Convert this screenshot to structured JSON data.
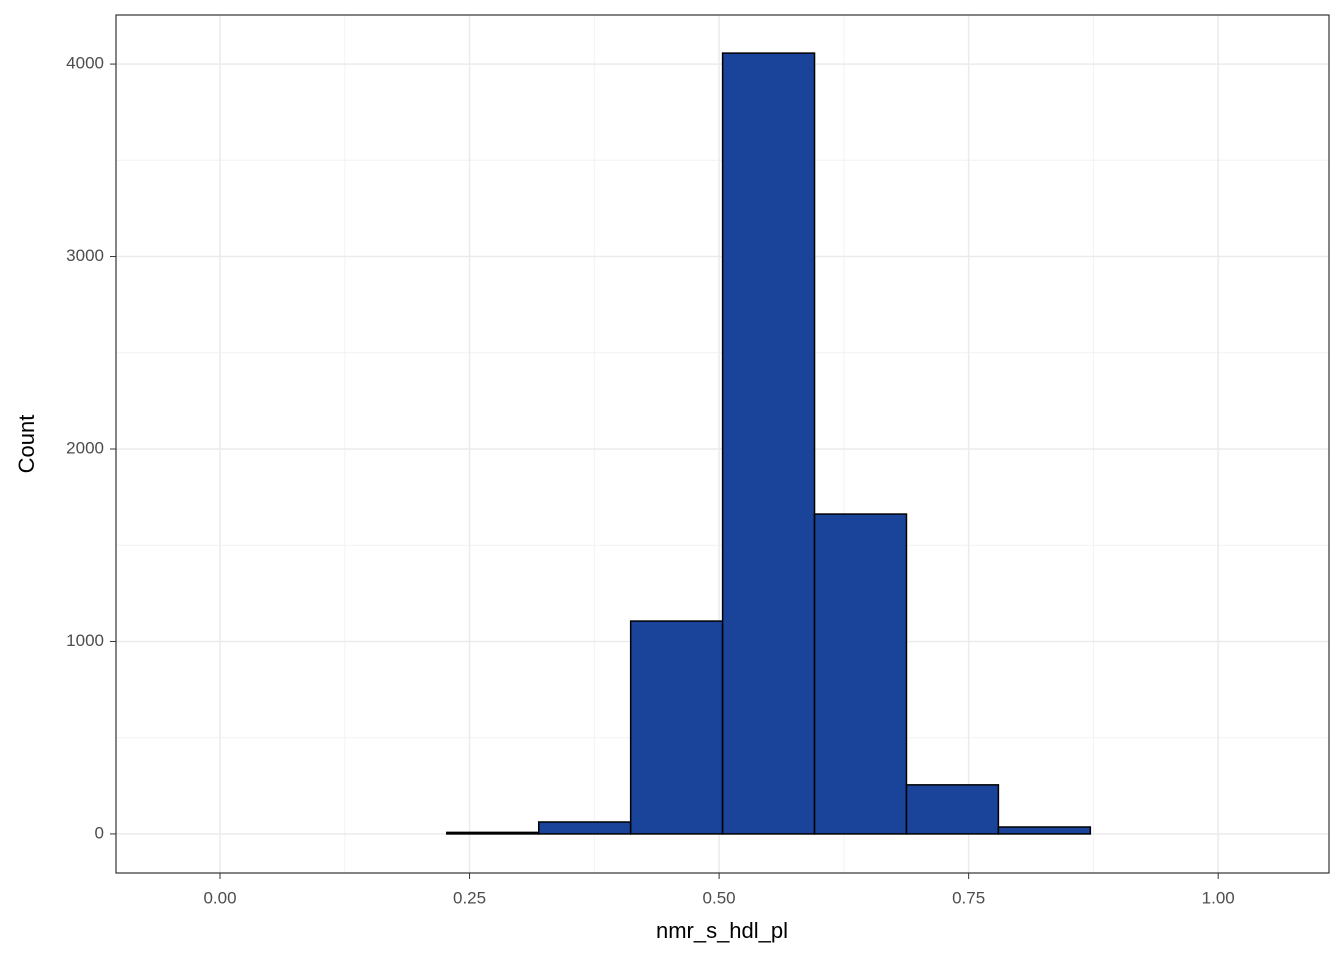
{
  "chart_data": {
    "type": "histogram",
    "x_label": "nmr_s_hdl_pl",
    "y_label": "Count",
    "bins": [
      -0.0491,
      0.043,
      0.1351,
      0.2272,
      0.3193,
      0.4114,
      0.5035,
      0.5956,
      0.6877,
      0.7798,
      0.8719,
      0.964,
      1.0561
    ],
    "values": [
      0,
      0,
      0,
      8,
      62,
      1106,
      4057,
      1662,
      255,
      36,
      0,
      0
    ],
    "color": "#1a4499",
    "edge_color": "#000000",
    "xlim": [
      -0.1042,
      1.111
    ],
    "ylim": [
      -203,
      4255
    ],
    "xticks": [
      {
        "value": 0,
        "label": "0.00"
      },
      {
        "value": 0.25,
        "label": "0.25"
      },
      {
        "value": 0.5,
        "label": "0.50"
      },
      {
        "value": 0.75,
        "label": "0.75"
      },
      {
        "value": 1,
        "label": "1.00"
      }
    ],
    "yticks": [
      0,
      1000,
      2000,
      3000,
      4000
    ],
    "grid": true,
    "minor_grid": true
  }
}
